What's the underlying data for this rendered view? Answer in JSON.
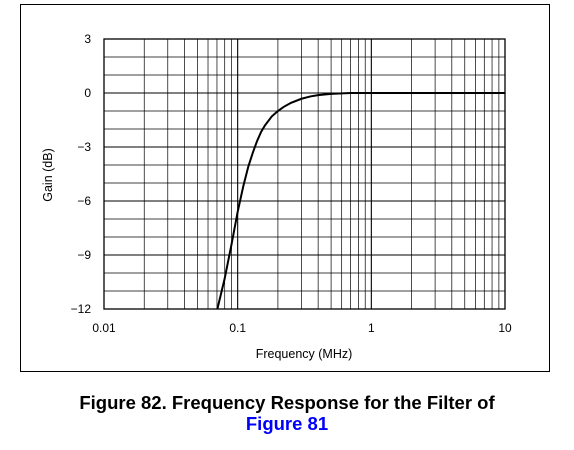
{
  "chart_data": {
    "type": "line",
    "xlabel": "Frequency (MHz)",
    "ylabel": "Gain (dB)",
    "x_scale": "log",
    "xlim": [
      0.01,
      10
    ],
    "ylim": [
      -12,
      3
    ],
    "x_ticks": [
      "0.01",
      "0.1",
      "1",
      "10"
    ],
    "y_ticks": [
      "3",
      "0",
      "−3",
      "−6",
      "−9",
      "−12"
    ],
    "grid": true,
    "colors": {
      "line": "#000000",
      "grid": "#000000"
    },
    "series": [
      {
        "x": [
          0.0705,
          0.08,
          0.09,
          0.1,
          0.11,
          0.12,
          0.13,
          0.14,
          0.15,
          0.16,
          0.18,
          0.2,
          0.22,
          0.25,
          0.3,
          0.35,
          0.4,
          0.5,
          0.6,
          0.7,
          1,
          2,
          5,
          10
        ],
        "y": [
          -12,
          -10.3,
          -8.4,
          -6.6,
          -5.2,
          -4.1,
          -3.3,
          -2.65,
          -2.15,
          -1.8,
          -1.3,
          -1.0,
          -0.78,
          -0.55,
          -0.32,
          -0.19,
          -0.12,
          -0.05,
          -0.02,
          0,
          0,
          0,
          0,
          0
        ]
      }
    ]
  },
  "caption": {
    "line1": "Figure 82. Frequency Response for the Filter of",
    "line2": "Figure 81"
  }
}
